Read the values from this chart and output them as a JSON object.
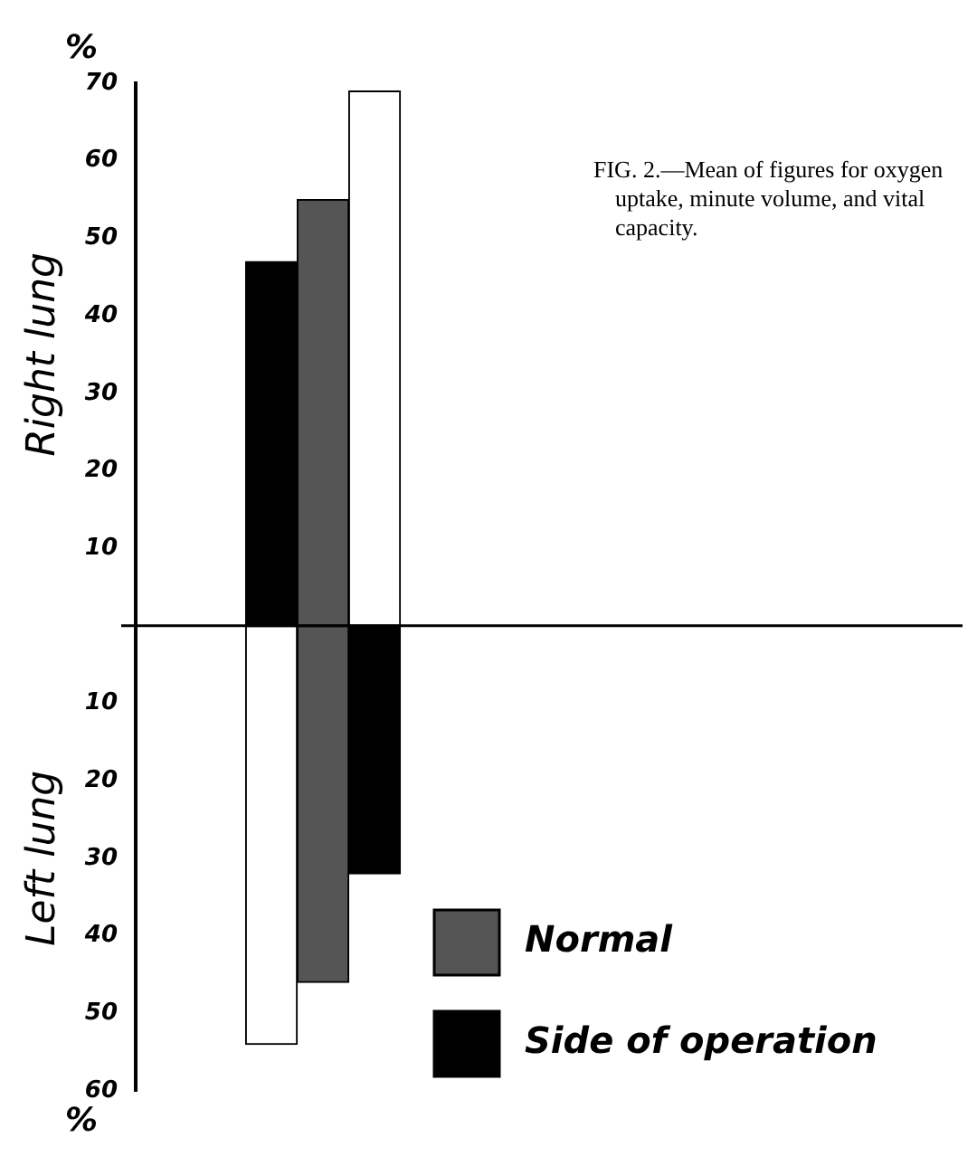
{
  "chart_data": {
    "type": "bar",
    "stacked": true,
    "categories": [
      null,
      null,
      null
    ],
    "series": [
      {
        "name": "Side of operation",
        "color": "#000000",
        "values": [
          47,
          null,
          -32
        ]
      },
      {
        "name": "Normal",
        "color": "#555555",
        "values": [
          null,
          55,
          null
        ]
      },
      {
        "color": "#555555",
        "values": [
          null,
          -46,
          null
        ]
      },
      {
        "color": "#ffffff",
        "values": [
          -54,
          null,
          69
        ]
      }
    ],
    "ylim": [
      -60,
      70
    ],
    "yticks": [
      {
        "value": -60,
        "label": "60"
      },
      {
        "value": -50,
        "label": "50"
      },
      {
        "value": -40,
        "label": "40"
      },
      {
        "value": -30,
        "label": "30"
      },
      {
        "value": -20,
        "label": "20"
      },
      {
        "value": -10,
        "label": "10"
      },
      10,
      20,
      30,
      40,
      50,
      60,
      70
    ],
    "legend": "bottom right",
    "grid": false,
    "annotations": [
      "FIG. 2.—Mean of figures for oxygen uptake, minute volume, and vital capacity.",
      "%",
      "%",
      "Right lung",
      "Left lung"
    ]
  }
}
